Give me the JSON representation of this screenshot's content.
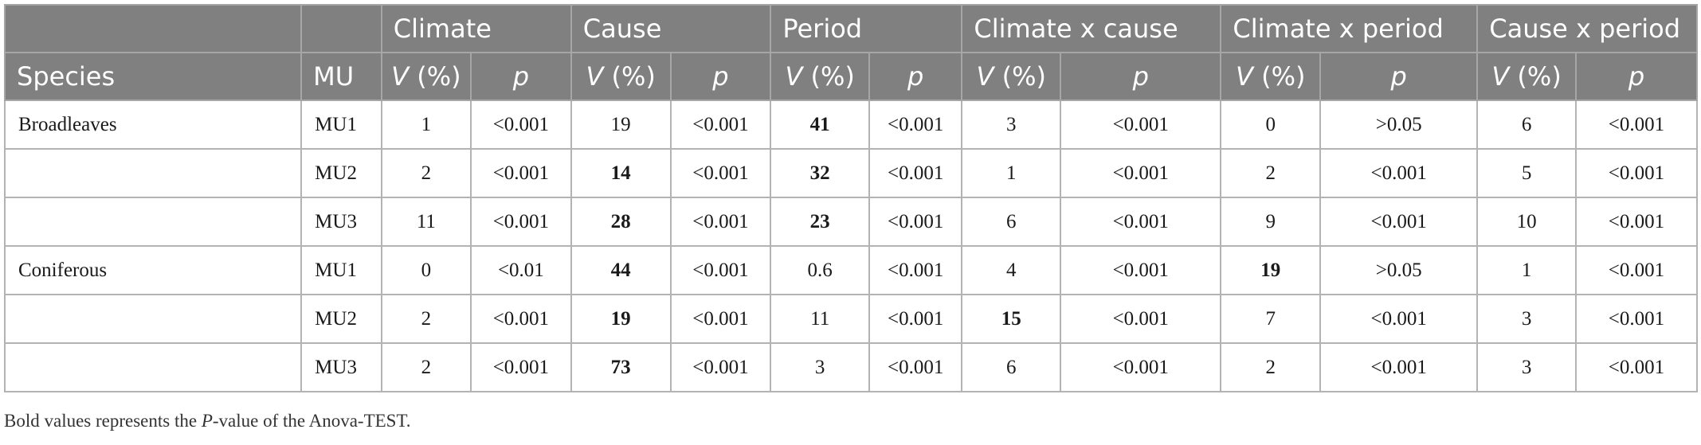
{
  "table": {
    "groups": [
      {
        "label": ""
      },
      {
        "label": ""
      },
      {
        "label": "Climate"
      },
      {
        "label": "Cause"
      },
      {
        "label": "Period"
      },
      {
        "label": "Climate x cause"
      },
      {
        "label": "Climate x period"
      },
      {
        "label": "Cause x period"
      }
    ],
    "columns": {
      "species": "Species",
      "mu": "MU",
      "v": "V (%)",
      "p": "p"
    },
    "rows": [
      {
        "species": "Broadleaves",
        "mu": "MU1",
        "cells": [
          {
            "v": "1",
            "p": "<0.001"
          },
          {
            "v": "19",
            "p": "<0.001"
          },
          {
            "v": "41",
            "p": "<0.001",
            "bold": true
          },
          {
            "v": "3",
            "p": "<0.001"
          },
          {
            "v": "0",
            "p": ">0.05"
          },
          {
            "v": "6",
            "p": "<0.001"
          }
        ]
      },
      {
        "species": "",
        "mu": "MU2",
        "cells": [
          {
            "v": "2",
            "p": "<0.001"
          },
          {
            "v": "14",
            "p": "<0.001",
            "bold": true
          },
          {
            "v": "32",
            "p": "<0.001",
            "bold": true
          },
          {
            "v": "1",
            "p": "<0.001"
          },
          {
            "v": "2",
            "p": "<0.001"
          },
          {
            "v": "5",
            "p": "<0.001"
          }
        ]
      },
      {
        "species": "",
        "mu": "MU3",
        "cells": [
          {
            "v": "11",
            "p": "<0.001"
          },
          {
            "v": "28",
            "p": "<0.001",
            "bold": true
          },
          {
            "v": "23",
            "p": "<0.001",
            "bold": true
          },
          {
            "v": "6",
            "p": "<0.001"
          },
          {
            "v": "9",
            "p": "<0.001"
          },
          {
            "v": "10",
            "p": "<0.001"
          }
        ]
      },
      {
        "species": "Coniferous",
        "mu": "MU1",
        "cells": [
          {
            "v": "0",
            "p": "<0.01"
          },
          {
            "v": "44",
            "p": "<0.001",
            "bold": true
          },
          {
            "v": "0.6",
            "p": "<0.001"
          },
          {
            "v": "4",
            "p": "<0.001"
          },
          {
            "v": "19",
            "p": ">0.05",
            "bold": true
          },
          {
            "v": "1",
            "p": "<0.001"
          }
        ]
      },
      {
        "species": "",
        "mu": "MU2",
        "cells": [
          {
            "v": "2",
            "p": "<0.001"
          },
          {
            "v": "19",
            "p": "<0.001",
            "bold": true
          },
          {
            "v": "11",
            "p": "<0.001"
          },
          {
            "v": "15",
            "p": "<0.001",
            "bold": true
          },
          {
            "v": "7",
            "p": "<0.001"
          },
          {
            "v": "3",
            "p": "<0.001"
          }
        ]
      },
      {
        "species": "",
        "mu": "MU3",
        "cells": [
          {
            "v": "2",
            "p": "<0.001"
          },
          {
            "v": "73",
            "p": "<0.001",
            "bold": true
          },
          {
            "v": "3",
            "p": "<0.001"
          },
          {
            "v": "6",
            "p": "<0.001"
          },
          {
            "v": "2",
            "p": "<0.001"
          },
          {
            "v": "3",
            "p": "<0.001"
          }
        ]
      }
    ]
  },
  "footnote": {
    "before": "Bold values represents the ",
    "italic": "P",
    "after": "-value of the Anova-TEST."
  }
}
